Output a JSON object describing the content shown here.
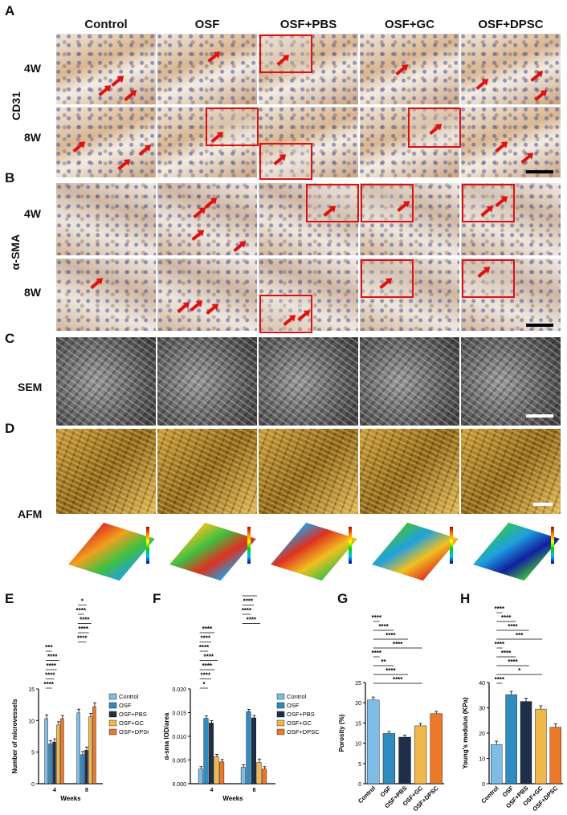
{
  "panel_letters": [
    "A",
    "B",
    "C",
    "D",
    "E",
    "F",
    "G",
    "H"
  ],
  "columns": [
    "Control",
    "OSF",
    "OSF+PBS",
    "OSF+GC",
    "OSF+DPSC"
  ],
  "row_labels": {
    "cd31": "CD31",
    "asma": "α-SMA",
    "sem": "SEM",
    "afm": "AFM",
    "week4": "4W",
    "week8": "8W"
  },
  "colors": {
    "control": "#7dbde6",
    "osf": "#2f8cc0",
    "pbs": "#1e2f4a",
    "gc": "#f0b84a",
    "dpsc": "#ea7a2a",
    "arrow": "#e01010"
  },
  "chart_data": [
    {
      "panel": "E",
      "type": "bar",
      "categories": [
        "4",
        "8"
      ],
      "xlabel": "Weeks",
      "ylabel": "Number of microvessels",
      "ylim": [
        0,
        15
      ],
      "yticks": [
        "0",
        "5",
        "10",
        "15"
      ],
      "series": [
        {
          "name": "Control",
          "values": [
            10.3,
            11.2
          ],
          "err": [
            0.6,
            0.6
          ]
        },
        {
          "name": "OSF",
          "values": [
            6.3,
            4.6
          ],
          "err": [
            0.5,
            0.5
          ]
        },
        {
          "name": "OSF+PBS",
          "values": [
            6.6,
            5.3
          ],
          "err": [
            0.5,
            0.5
          ]
        },
        {
          "name": "OSF+GC",
          "values": [
            9.3,
            10.6
          ],
          "err": [
            0.5,
            0.5
          ]
        },
        {
          "name": "OSF+DPSC",
          "values": [
            10.3,
            12.2
          ],
          "err": [
            0.5,
            0.6
          ]
        }
      ],
      "sig": [
        "****",
        "****",
        "****",
        "****",
        "***",
        "****",
        "****",
        "****",
        "****",
        "*"
      ]
    },
    {
      "panel": "F",
      "type": "bar",
      "categories": [
        "4",
        "8"
      ],
      "xlabel": "Weeks",
      "ylabel": "α-sma IOD/area",
      "ylim": [
        0,
        0.02
      ],
      "yticks": [
        "0.000",
        "0.005",
        "0.010",
        "0.015",
        "0.020"
      ],
      "series": [
        {
          "name": "Control",
          "values": [
            0.0031,
            0.0035
          ],
          "err": [
            0.0005,
            0.0005
          ]
        },
        {
          "name": "OSF",
          "values": [
            0.0138,
            0.0152
          ],
          "err": [
            0.0005,
            0.0005
          ]
        },
        {
          "name": "OSF+PBS",
          "values": [
            0.0128,
            0.0139
          ],
          "err": [
            0.0005,
            0.0005
          ]
        },
        {
          "name": "OSF+GC",
          "values": [
            0.0057,
            0.0045
          ],
          "err": [
            0.0005,
            0.0007
          ]
        },
        {
          "name": "OSF+DPSC",
          "values": [
            0.0046,
            0.0031
          ],
          "err": [
            0.0005,
            0.0005
          ]
        }
      ],
      "sig": [
        "*",
        "****",
        "****",
        "****",
        "****",
        "****",
        "****",
        "****",
        "****",
        "****",
        "****",
        "****",
        "*"
      ]
    },
    {
      "panel": "G",
      "type": "bar",
      "categories": [
        "Control",
        "OSF",
        "OSF+PBS",
        "OSF+GC",
        "OSF+DPSC"
      ],
      "xlabel": "",
      "ylabel": "Porosity (%)",
      "ylim": [
        0,
        25
      ],
      "yticks": [
        "0",
        "5",
        "10",
        "15",
        "20",
        "25"
      ],
      "values": [
        20.7,
        12.4,
        11.5,
        14.3,
        17.3
      ],
      "err": [
        0.7,
        0.5,
        0.5,
        0.6,
        0.6
      ],
      "sig": [
        "****",
        "****",
        "****",
        "****",
        "****",
        "**",
        "****",
        "****"
      ]
    },
    {
      "panel": "H",
      "type": "bar",
      "categories": [
        "Control",
        "OSF",
        "OSF+PBS",
        "OSF+GC",
        "OSF+DPSC"
      ],
      "xlabel": "",
      "ylabel": "Young's modulus  (KPa)",
      "ylim": [
        0,
        40
      ],
      "yticks": [
        "0",
        "10",
        "20",
        "30",
        "40"
      ],
      "values": [
        15.5,
        35.2,
        32.5,
        29.5,
        22.3
      ],
      "err": [
        1.3,
        1.3,
        1.3,
        1.3,
        1.4
      ],
      "sig": [
        "****",
        "****",
        "****",
        "***",
        "****",
        "****",
        "****",
        "*",
        "****"
      ]
    }
  ]
}
